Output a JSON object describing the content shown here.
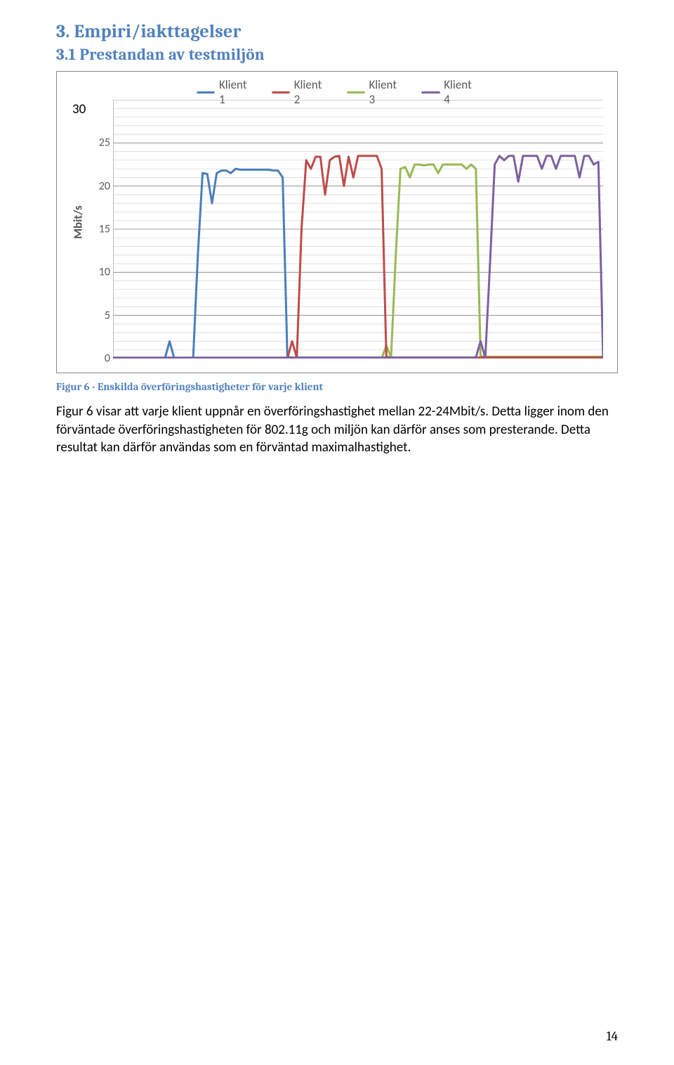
{
  "heading2": "3. Empiri/iakttagelser",
  "heading3": "3.1 Prestandan av testmiljön",
  "chart": {
    "type": "line",
    "ylabel": "Mbit/s",
    "ylim": [
      0,
      30
    ],
    "ytick_step": 5,
    "thirty_outside": "30",
    "grid_major_color": "#808080",
    "grid_minor_color": "#d9d9d9",
    "axis_color": "#808080",
    "legend": [
      {
        "label": "Klient 1",
        "color": "#4a7ebb"
      },
      {
        "label": "Klient 2",
        "color": "#be4b48"
      },
      {
        "label": "Klient 3",
        "color": "#98b954"
      },
      {
        "label": "Klient 4",
        "color": "#7d60a0"
      }
    ],
    "series": {
      "klient1": {
        "color": "#4a7ebb",
        "values": [
          0,
          0,
          0,
          0,
          0,
          0,
          0,
          0,
          0,
          0,
          0,
          0,
          2,
          0,
          0,
          0,
          0,
          0,
          12,
          21.5,
          21.4,
          18,
          21.5,
          21.8,
          21.8,
          21.5,
          22,
          21.9,
          21.9,
          21.9,
          21.9,
          21.9,
          21.9,
          21.9,
          21.8,
          21.8,
          21,
          0.2,
          0.1,
          0.1,
          0.1,
          0.1,
          0.1,
          0.1,
          0.1,
          0.1,
          0.1,
          0.1,
          0.1,
          0.1,
          0.1,
          0.1,
          0.1,
          0.1,
          0.1,
          0.1,
          0.1,
          0.1,
          0.1,
          0.1,
          0.1,
          0.1,
          0.1,
          0.1,
          0.1,
          0.1,
          0.1,
          0.1,
          0.1,
          0.1,
          0.1,
          0.1,
          0.1,
          0.1,
          0.1,
          0.1,
          0.1,
          0.1,
          0.1,
          0.1,
          0.1,
          0.1,
          0.1,
          0.1,
          0.1,
          0.1,
          0.1,
          0.1,
          0.1,
          0.1,
          0.1,
          0.1,
          0.1,
          0.1,
          0.1,
          0.1,
          0.1,
          0.1,
          0.1,
          0.1,
          0.1,
          0.1,
          0.1,
          0.1,
          0.1
        ]
      },
      "klient2": {
        "color": "#be4b48",
        "values": [
          0,
          0,
          0,
          0,
          0,
          0,
          0,
          0,
          0,
          0,
          0,
          0,
          0,
          0,
          0,
          0,
          0,
          0,
          0,
          0,
          0,
          0,
          0,
          0,
          0,
          0,
          0,
          0,
          0,
          0,
          0,
          0,
          0,
          0,
          0,
          0,
          0,
          0,
          2,
          0.1,
          15,
          23,
          22,
          23.4,
          23.4,
          19,
          23,
          23.4,
          23.5,
          20,
          23.4,
          21,
          23.5,
          23.5,
          23.5,
          23.5,
          23.5,
          22,
          0.2,
          0.1,
          0.1,
          0.1,
          0.1,
          0.1,
          0.1,
          0.1,
          0.1,
          0.1,
          0.1,
          0.1,
          0.1,
          0.1,
          0.1,
          0.1,
          0.1,
          0.1,
          0.1,
          0.1,
          0.1,
          0.1,
          0.1,
          0.1,
          0.1,
          0.1,
          0.1,
          0.1,
          0.1,
          0.1,
          0.1,
          0.1,
          0.1,
          0.1,
          0.1,
          0.1,
          0.1,
          0.1,
          0.1,
          0.1,
          0.1,
          0.1,
          0.1,
          0.1,
          0.1,
          0.1,
          0.1
        ]
      },
      "klient3": {
        "color": "#98b954",
        "values": [
          0,
          0,
          0,
          0,
          0,
          0,
          0,
          0,
          0,
          0,
          0,
          0,
          0,
          0,
          0,
          0,
          0,
          0,
          0,
          0,
          0,
          0,
          0,
          0,
          0,
          0,
          0,
          0,
          0,
          0,
          0,
          0,
          0,
          0,
          0,
          0,
          0,
          0,
          0,
          0,
          0,
          0,
          0,
          0,
          0,
          0,
          0,
          0,
          0,
          0,
          0,
          0,
          0,
          0,
          0,
          0,
          0,
          0,
          1.5,
          0.1,
          12,
          22,
          22.2,
          21,
          22.5,
          22.5,
          22.4,
          22.5,
          22.5,
          21.5,
          22.5,
          22.5,
          22.5,
          22.5,
          22.5,
          22,
          22.5,
          22,
          0.3,
          0.2,
          0.2,
          0.2,
          0.2,
          0.2,
          0.2,
          0.2,
          0.2,
          0.2,
          0.2,
          0.2,
          0.2,
          0.2,
          0.2,
          0.2,
          0.2,
          0.2,
          0.2,
          0.2,
          0.2,
          0.2,
          0.2,
          0.2,
          0.2,
          0.2,
          0.2
        ]
      },
      "klient4": {
        "color": "#7d60a0",
        "values": [
          0.1,
          0.1,
          0.1,
          0.1,
          0.1,
          0.1,
          0.1,
          0.1,
          0.1,
          0.1,
          0.1,
          0.1,
          0.1,
          0.1,
          0.1,
          0.1,
          0.1,
          0.1,
          0.1,
          0.1,
          0.1,
          0.1,
          0.1,
          0.1,
          0.1,
          0.1,
          0.1,
          0.1,
          0.1,
          0.1,
          0.1,
          0.1,
          0.1,
          0.1,
          0.1,
          0.1,
          0.1,
          0.1,
          0.1,
          0.1,
          0.1,
          0.1,
          0.1,
          0.1,
          0.1,
          0.1,
          0.1,
          0.1,
          0.1,
          0.1,
          0.1,
          0.1,
          0.1,
          0.1,
          0.1,
          0.1,
          0.1,
          0.1,
          0.1,
          0.1,
          0.1,
          0.1,
          0.1,
          0.1,
          0.1,
          0.1,
          0.1,
          0.1,
          0.1,
          0.1,
          0.1,
          0.1,
          0.1,
          0.1,
          0.1,
          0.1,
          0.1,
          0.1,
          2,
          0.1,
          11,
          22.5,
          23.5,
          23,
          23.5,
          23.5,
          20.5,
          23.5,
          23.5,
          23.5,
          23.5,
          22,
          23.5,
          23.5,
          22,
          23.5,
          23.5,
          23.5,
          23.5,
          21,
          23.5,
          23.5,
          22.5,
          22.8,
          0.1
        ]
      }
    },
    "yticks": [
      0,
      5,
      10,
      15,
      20,
      25
    ],
    "tick_color": "#595959",
    "tick_fontsize": 16
  },
  "caption": "Figur 6 - Enskilda överföringshastigheter för varje klient",
  "body": "Figur 6 visar att varje klient uppnår en överföringshastighet mellan 22-24Mbit/s. Detta ligger inom den förväntade överföringshastigheten för 802.11g och miljön kan därför anses som presterande. Detta resultat kan därför användas som en förväntad maximalhastighet.",
  "page_number": "14"
}
